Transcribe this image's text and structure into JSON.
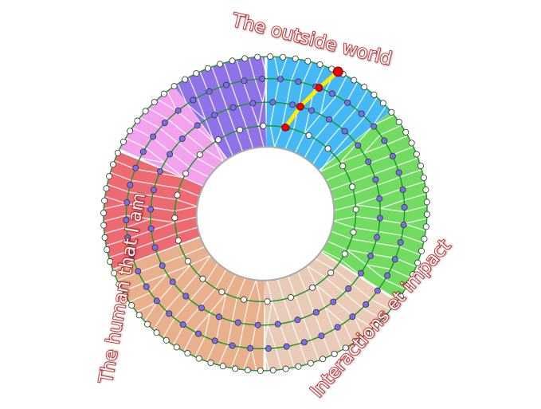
{
  "labels": {
    "top": "The outside world",
    "left": "The human that I am",
    "right": "Interactions et impact"
  },
  "sectors": [
    {
      "name": "blue",
      "color": "#45b8f6"
    },
    {
      "name": "green",
      "color": "#72dc62"
    },
    {
      "name": "beige",
      "color": "#e9cbb7"
    },
    {
      "name": "tan",
      "color": "#e8b08c"
    },
    {
      "name": "red",
      "color": "#ee6a72"
    },
    {
      "name": "pink",
      "color": "#f3a2ee"
    },
    {
      "name": "purple",
      "color": "#8f72e8"
    }
  ],
  "colors": {
    "ring_line": "#1f9a2a",
    "spoke": "#ffffff",
    "inner_dot": "#7b6ee8",
    "edge_dot": "#ffffff",
    "path": "#ffee00",
    "path_dot": "#ee0000"
  }
}
